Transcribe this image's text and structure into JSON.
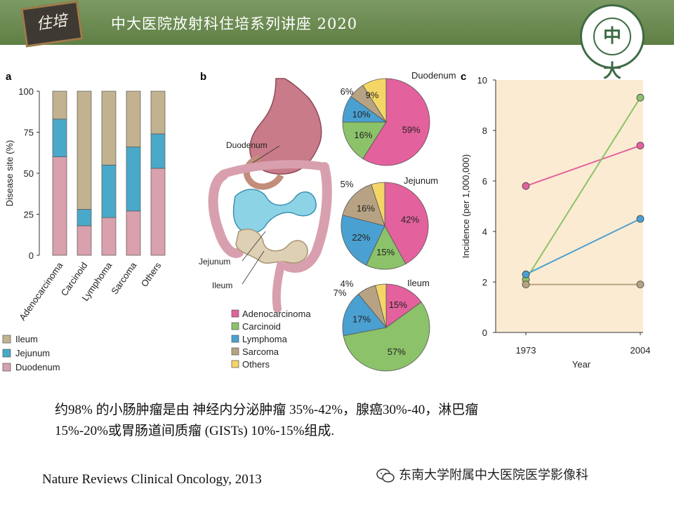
{
  "header": {
    "title": "中大医院放射科住培系列讲座 2020",
    "badge_text": "住培",
    "logo_glyph": "中大",
    "colors": {
      "banner": "#6b8a50",
      "logo": "#3e6b44"
    }
  },
  "panel_labels": {
    "a": "a",
    "b": "b",
    "c": "c"
  },
  "colors": {
    "ileum": "#c2b28f",
    "jejunum": "#4aa9c9",
    "duodenum": "#d9a0ad",
    "adenocarcinoma": "#e3619c",
    "carcinoid": "#8cc26a",
    "lymphoma": "#4aa0d0",
    "sarcoma": "#b7a383",
    "others": "#f4d667"
  },
  "chart_data": [
    {
      "type": "bar",
      "stacked": true,
      "ylabel": "Disease site (%)",
      "ylim": [
        0,
        100
      ],
      "yticks": [
        "0",
        "25",
        "50",
        "75",
        "100"
      ],
      "categories": [
        "Adenocarcinoma",
        "Carcinoid",
        "Lymphoma",
        "Sarcoma",
        "Others"
      ],
      "series": [
        {
          "name": "Duodenum",
          "values": [
            60,
            18,
            23,
            27,
            53
          ]
        },
        {
          "name": "Jejunum",
          "values": [
            23,
            10,
            32,
            39,
            21
          ]
        },
        {
          "name": "Ileum",
          "values": [
            17,
            72,
            45,
            34,
            26
          ]
        }
      ],
      "legend": [
        "Ileum",
        "Jejunum",
        "Duodenum"
      ],
      "legend_position": "bottom-left"
    },
    {
      "type": "pie",
      "title": "Duodenum",
      "slices": [
        {
          "name": "Adenocarcinoma",
          "value": 59,
          "label": "59%"
        },
        {
          "name": "Carcinoid",
          "value": 16,
          "label": "16%"
        },
        {
          "name": "Lymphoma",
          "value": 10,
          "label": "10%"
        },
        {
          "name": "Sarcoma",
          "value": 6,
          "label": "6%"
        },
        {
          "name": "Others",
          "value": 9,
          "label": "9%"
        }
      ]
    },
    {
      "type": "pie",
      "title": "Jejunum",
      "slices": [
        {
          "name": "Adenocarcinoma",
          "value": 42,
          "label": "42%"
        },
        {
          "name": "Carcinoid",
          "value": 15,
          "label": "15%"
        },
        {
          "name": "Lymphoma",
          "value": 22,
          "label": "22%"
        },
        {
          "name": "Sarcoma",
          "value": 16,
          "label": "16%"
        },
        {
          "name": "Others",
          "value": 5,
          "label": "5%"
        }
      ]
    },
    {
      "type": "pie",
      "title": "Ileum",
      "slices": [
        {
          "name": "Adenocarcinoma",
          "value": 15,
          "label": "15%"
        },
        {
          "name": "Carcinoid",
          "value": 57,
          "label": "57%"
        },
        {
          "name": "Lymphoma",
          "value": 17,
          "label": "17%"
        },
        {
          "name": "Sarcoma",
          "value": 7,
          "label": "7%"
        },
        {
          "name": "Others",
          "value": 4,
          "label": "4%"
        }
      ]
    },
    {
      "type": "line",
      "xlabel": "Year",
      "ylabel": "Incidence (per 1,000,000)",
      "x": [
        "1973",
        "2004"
      ],
      "ylim": [
        0,
        10
      ],
      "yticks": [
        "0",
        "2",
        "4",
        "6",
        "8",
        "10"
      ],
      "series": [
        {
          "name": "Adenocarcinoma",
          "values": [
            5.8,
            7.4
          ]
        },
        {
          "name": "Carcinoid",
          "values": [
            2.1,
            9.3
          ]
        },
        {
          "name": "Lymphoma",
          "values": [
            2.3,
            4.5
          ]
        },
        {
          "name": "Sarcoma",
          "values": [
            1.9,
            1.9
          ]
        }
      ]
    }
  ],
  "pie_legend": [
    "Adenocarcinoma",
    "Carcinoid",
    "Lymphoma",
    "Sarcoma",
    "Others"
  ],
  "anatomy_labels": {
    "duodenum": "Duodenum",
    "jejunum": "Jejunum",
    "ileum": "Ileum"
  },
  "caption": {
    "line1": "约98% 的小肠肿瘤是由 神经内分泌肿瘤 35%-42%，腺癌30%-40，淋巴瘤",
    "line2": "15%-20%或胃肠道间质瘤 (GISTs)  10%-15%组成."
  },
  "citation": "Nature Reviews Clinical Oncology, 2013",
  "watermark": "东南大学附属中大医院医学影像科"
}
